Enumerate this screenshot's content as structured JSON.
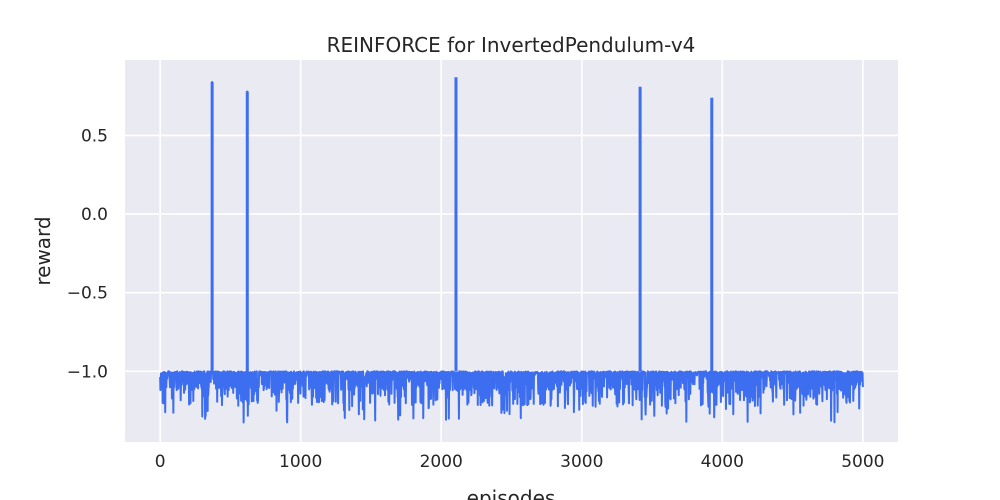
{
  "chart_data": {
    "type": "line",
    "title": "REINFORCE for InvertedPendulum-v4",
    "xlabel": "episodes",
    "ylabel": "reward",
    "xlim": [
      -250,
      5250
    ],
    "ylim": [
      -1.45,
      0.98
    ],
    "xticks": [
      0,
      1000,
      2000,
      3000,
      4000,
      5000
    ],
    "xtick_labels": [
      "0",
      "1000",
      "2000",
      "3000",
      "4000",
      "5000"
    ],
    "yticks": [
      -1.0,
      -0.5,
      0.0,
      0.5
    ],
    "ytick_labels": [
      "−1.0",
      "−0.5",
      "0.0",
      "0.5"
    ],
    "grid": true,
    "style": "seaborn-darkgrid",
    "colors": {
      "line": "#3d6ef0",
      "background": "#eaeaf2",
      "grid": "#ffffff"
    },
    "series": [
      {
        "episodes": 5000,
        "baseline": -1.0,
        "noise_min": -1.33,
        "spikes": [
          {
            "x": 370,
            "y": 0.84
          },
          {
            "x": 620,
            "y": 0.78
          },
          {
            "x": 2105,
            "y": 0.87
          },
          {
            "x": 3415,
            "y": 0.81
          },
          {
            "x": 3925,
            "y": 0.74
          }
        ]
      }
    ]
  }
}
